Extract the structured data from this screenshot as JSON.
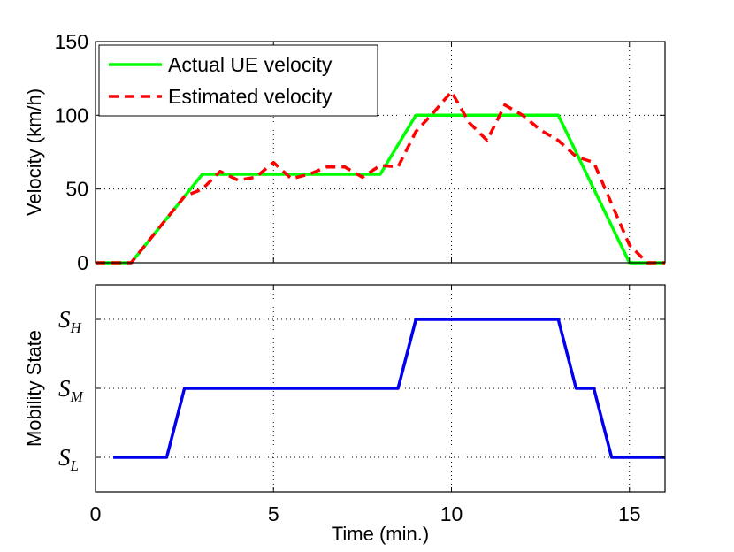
{
  "chart_data": [
    {
      "type": "line",
      "title": "",
      "xlabel": "",
      "ylabel": "Velocity (km/h)",
      "xlim": [
        0,
        16
      ],
      "ylim": [
        0,
        150
      ],
      "xticks": [
        0,
        5,
        10,
        15
      ],
      "yticks": [
        0,
        50,
        100,
        150
      ],
      "grid": true,
      "legend_position": "top-left",
      "series": [
        {
          "name": "Actual UE velocity",
          "color": "#00ff00",
          "style": "solid",
          "x": [
            0,
            1,
            3,
            8,
            9,
            13,
            15,
            16
          ],
          "y": [
            0,
            0,
            60,
            60,
            100,
            100,
            0,
            0
          ]
        },
        {
          "name": "Estimated velocity",
          "color": "#ff0000",
          "style": "dashed",
          "x": [
            0,
            1,
            2.5,
            3,
            3.5,
            4,
            4.5,
            5,
            5.5,
            6,
            6.5,
            7,
            7.5,
            8,
            8.5,
            9,
            9.5,
            10,
            10.5,
            11,
            11.5,
            12,
            12.5,
            13,
            13.5,
            14,
            14.5,
            15,
            15.5,
            16
          ],
          "y": [
            0,
            0,
            45,
            50,
            62,
            56,
            58,
            68,
            57,
            60,
            65,
            65,
            58,
            66,
            65,
            89,
            102,
            116,
            95,
            83,
            107,
            100,
            90,
            83,
            72,
            68,
            40,
            12,
            0,
            0
          ]
        }
      ]
    },
    {
      "type": "line",
      "title": "",
      "xlabel": "Time (min.)",
      "ylabel": "Mobility State",
      "xlim": [
        0,
        16
      ],
      "ylim": [
        0.5,
        3.5
      ],
      "xticks": [
        0,
        5,
        10,
        15
      ],
      "yticks": [
        {
          "value": 1,
          "base": "S",
          "sub": "L"
        },
        {
          "value": 2,
          "base": "S",
          "sub": "M"
        },
        {
          "value": 3,
          "base": "S",
          "sub": "H"
        }
      ],
      "grid": true,
      "series": [
        {
          "name": "Mobility state",
          "color": "#0000ee",
          "style": "solid",
          "x": [
            0.5,
            2,
            2.5,
            8.5,
            9,
            13,
            13.5,
            14,
            14.5,
            16
          ],
          "y": [
            1,
            1,
            2,
            2,
            3,
            3,
            2,
            2,
            1,
            1
          ]
        }
      ]
    }
  ]
}
